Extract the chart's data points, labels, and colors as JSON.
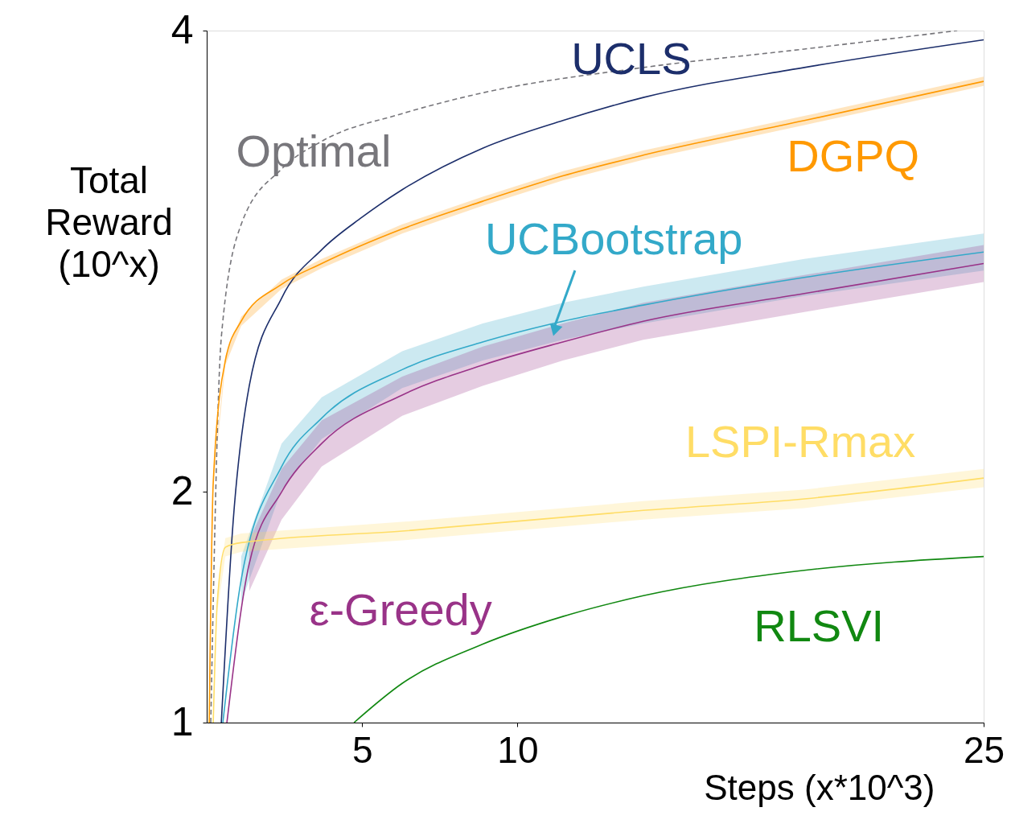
{
  "chart_data": {
    "type": "line",
    "xlabel": "Steps (x*10^3)",
    "ylabel": "Total Reward (10^x)",
    "xlim": [
      0,
      25
    ],
    "ylim": [
      1,
      4
    ],
    "xticks": [
      5,
      10,
      25
    ],
    "yticks": [
      1,
      2,
      4
    ],
    "grid": false,
    "series": [
      {
        "name": "Optimal",
        "color": "#77767b",
        "line_style": "dashed",
        "x": [
          0.13,
          0.47,
          1.11,
          2.41,
          3.7,
          6.29,
          8.88,
          14.05,
          19.23,
          24.15
        ],
        "values": [
          1.0,
          2.67,
          3.16,
          3.4,
          3.52,
          3.64,
          3.73,
          3.84,
          3.92,
          4.0
        ]
      },
      {
        "name": "UCLS",
        "color": "#1c2e6b",
        "x": [
          0.47,
          0.85,
          1.37,
          2.41,
          3.7,
          4.99,
          6.29,
          8.88,
          11.46,
          14.05,
          19.23,
          25
        ],
        "values": [
          1.0,
          1.87,
          2.46,
          2.84,
          3.05,
          3.19,
          3.31,
          3.49,
          3.61,
          3.71,
          3.84,
          3.96
        ]
      },
      {
        "name": "DGPQ",
        "color": "#ff9900",
        "x": [
          0.08,
          0.21,
          0.6,
          1.11,
          2.41,
          3.7,
          6.29,
          8.88,
          11.46,
          14.05,
          19.23,
          25
        ],
        "values": [
          1.0,
          2.04,
          2.57,
          2.74,
          2.9,
          2.99,
          3.14,
          3.26,
          3.37,
          3.46,
          3.61,
          3.78
        ],
        "lower": [
          null,
          2.02,
          2.55,
          2.72,
          2.88,
          2.97,
          3.12,
          3.24,
          3.35,
          3.44,
          3.59,
          3.76
        ],
        "upper": [
          null,
          2.06,
          2.59,
          2.76,
          2.92,
          3.01,
          3.16,
          3.28,
          3.39,
          3.48,
          3.63,
          3.8
        ]
      },
      {
        "name": "UCBootstrap",
        "color": "#33a9c9",
        "x": [
          0.52,
          1.11,
          2.41,
          3.7,
          6.29,
          8.88,
          11.46,
          14.05,
          19.23,
          25
        ],
        "values": [
          1.0,
          1.62,
          2.11,
          2.32,
          2.53,
          2.65,
          2.74,
          2.81,
          2.93,
          3.04
        ],
        "lower": [
          null,
          1.52,
          2.01,
          2.23,
          2.45,
          2.57,
          2.66,
          2.73,
          2.85,
          2.96
        ],
        "upper": [
          null,
          1.72,
          2.21,
          2.41,
          2.61,
          2.73,
          2.82,
          2.89,
          3.01,
          3.12
        ]
      },
      {
        "name": "ε-Greedy",
        "color": "#993388",
        "x": [
          0.65,
          1.37,
          2.41,
          3.7,
          6.29,
          8.88,
          11.46,
          14.05,
          19.23,
          25
        ],
        "values": [
          1.0,
          1.69,
          2.0,
          2.21,
          2.42,
          2.55,
          2.65,
          2.74,
          2.86,
          2.99
        ],
        "lower": [
          null,
          1.57,
          1.88,
          2.11,
          2.33,
          2.46,
          2.57,
          2.66,
          2.78,
          2.91
        ],
        "upper": [
          null,
          1.79,
          2.1,
          2.31,
          2.5,
          2.63,
          2.73,
          2.82,
          2.94,
          3.07
        ]
      },
      {
        "name": "LSPI-Rmax",
        "color": "#ffdd66",
        "x": [
          0.21,
          0.34,
          0.6,
          1.11,
          6.29,
          14.05,
          19.23,
          25
        ],
        "values": [
          1.0,
          1.52,
          1.76,
          1.78,
          1.83,
          1.92,
          1.97,
          2.06
        ],
        "lower": [
          null,
          1.48,
          1.72,
          1.74,
          1.79,
          1.88,
          1.93,
          2.02
        ],
        "upper": [
          null,
          1.56,
          1.8,
          1.82,
          1.87,
          1.96,
          2.01,
          2.1
        ]
      },
      {
        "name": "RLSVI",
        "color": "#118811",
        "x": [
          4.74,
          6.29,
          8.88,
          11.46,
          14.05,
          19.23,
          25
        ],
        "values": [
          1.0,
          1.17,
          1.34,
          1.46,
          1.55,
          1.66,
          1.72
        ]
      }
    ]
  }
}
